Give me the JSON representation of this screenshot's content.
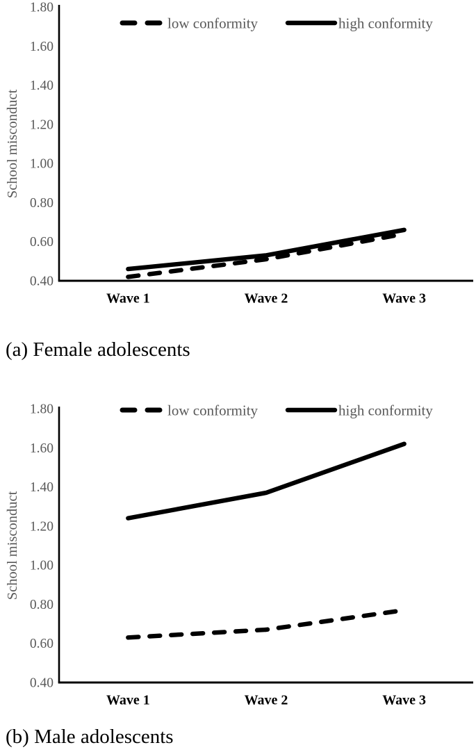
{
  "page": {
    "background_color": "#ffffff",
    "axis_color": "#000000",
    "line_color": "#000000",
    "gray_text_color": "#595959",
    "black_text_color": "#000000"
  },
  "chart_data": [
    {
      "type": "line",
      "caption": "(a) Female adolescents",
      "ylabel": "School misconduct",
      "categories": [
        "Wave 1",
        "Wave 2",
        "Wave 3"
      ],
      "series": [
        {
          "name": "low conformity",
          "dash": true,
          "values": [
            0.42,
            0.51,
            0.64
          ]
        },
        {
          "name": "high conformity",
          "dash": false,
          "values": [
            0.46,
            0.53,
            0.66
          ]
        }
      ],
      "ylim": [
        0.4,
        1.8
      ],
      "ytick_step": 0.2,
      "ytick_labels": [
        "0.40",
        "0.60",
        "0.80",
        "1.00",
        "1.20",
        "1.40",
        "1.60",
        "1.80"
      ],
      "legend_position": "top-center",
      "grid": false
    },
    {
      "type": "line",
      "caption": "(b) Male adolescents",
      "ylabel": "School misconduct",
      "categories": [
        "Wave 1",
        "Wave 2",
        "Wave 3"
      ],
      "series": [
        {
          "name": "low conformity",
          "dash": true,
          "values": [
            0.63,
            0.67,
            0.77
          ]
        },
        {
          "name": "high conformity",
          "dash": false,
          "values": [
            1.24,
            1.37,
            1.62
          ]
        }
      ],
      "ylim": [
        0.4,
        1.8
      ],
      "ytick_step": 0.2,
      "ytick_labels": [
        "0.40",
        "0.60",
        "0.80",
        "1.00",
        "1.20",
        "1.40",
        "1.60",
        "1.80"
      ],
      "legend_position": "top-center",
      "grid": false
    }
  ]
}
